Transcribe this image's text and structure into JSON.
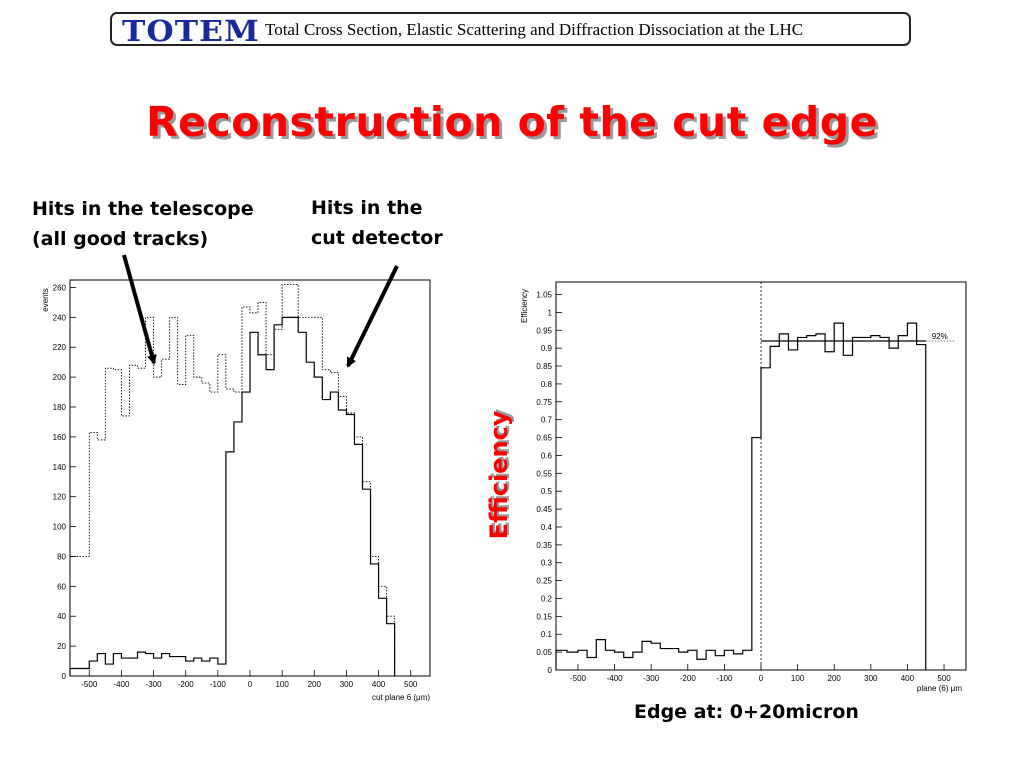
{
  "header": {
    "logo": "TOTEM",
    "subtitle": "Total Cross Section, Elastic Scattering and Diffraction Dissociation at the LHC"
  },
  "title": "Reconstruction of the cut edge",
  "annotations": {
    "telescope_line1": "Hits in the telescope",
    "telescope_line2": "(all good tracks)",
    "cut_line1": "Hits in the",
    "cut_line2": "cut detector"
  },
  "efficiency_label": "Efficiency",
  "edge_text": "Edge at: 0+20micron",
  "colors": {
    "title": "#ff0000",
    "logo": "#1a2a9a",
    "plot_line": "#000000"
  },
  "chart_data": [
    {
      "type": "line",
      "subtype": "histogram",
      "ylabel": "events",
      "xlabel": "cut plane 6 (μm)",
      "xlim": [
        -560,
        560
      ],
      "ylim": [
        0,
        265
      ],
      "xticks": [
        "-500",
        "-400",
        "-300",
        "-200",
        "-100",
        "0",
        "100",
        "200",
        "300",
        "400",
        "500"
      ],
      "yticks": [
        "0",
        "20",
        "40",
        "60",
        "80",
        "100",
        "120",
        "140",
        "160",
        "180",
        "200",
        "220",
        "240",
        "260"
      ],
      "bin_edges": [
        -560,
        -500,
        -475,
        -450,
        -425,
        -400,
        -375,
        -350,
        -325,
        -300,
        -275,
        -250,
        -225,
        -200,
        -175,
        -150,
        -125,
        -100,
        -75,
        -50,
        -25,
        0,
        25,
        50,
        75,
        100,
        125,
        150,
        175,
        200,
        225,
        250,
        275,
        300,
        325,
        350,
        375,
        400,
        425,
        450
      ],
      "series": [
        {
          "style": "dotted",
          "values": [
            80,
            163,
            158,
            206,
            205,
            174,
            208,
            206,
            240,
            200,
            212,
            240,
            195,
            228,
            200,
            196,
            190,
            215,
            192,
            190,
            247,
            243,
            250,
            215,
            232,
            262,
            262,
            240,
            240,
            240,
            205,
            203,
            187,
            176,
            160,
            130,
            80,
            60,
            40
          ]
        },
        {
          "style": "solid",
          "values": [
            5,
            10,
            15,
            8,
            15,
            12,
            12,
            16,
            15,
            12,
            15,
            13,
            13,
            10,
            12,
            10,
            12,
            8,
            150,
            170,
            190,
            230,
            215,
            205,
            235,
            240,
            240,
            230,
            210,
            200,
            185,
            190,
            178,
            175,
            155,
            125,
            75,
            52,
            35
          ]
        }
      ]
    },
    {
      "type": "line",
      "subtype": "histogram",
      "ylabel": "Efficiency",
      "xlabel": "plane (6) μm",
      "xlim": [
        -560,
        560
      ],
      "ylim": [
        0,
        1.085
      ],
      "xticks": [
        "-500",
        "-400",
        "-300",
        "-200",
        "-100",
        "0",
        "100",
        "200",
        "300",
        "400",
        "500"
      ],
      "yticks": [
        "0",
        "0.05",
        "0.1",
        "0.15",
        "0.2",
        "0.25",
        "0.3",
        "0.35",
        "0.4",
        "0.45",
        "0.5",
        "0.55",
        "0.6",
        "0.65",
        "0.7",
        "0.75",
        "0.8",
        "0.85",
        "0.9",
        "0.95",
        "1",
        "1.05"
      ],
      "bin_edges": [
        -560,
        -530,
        -500,
        -475,
        -450,
        -425,
        -400,
        -375,
        -350,
        -325,
        -300,
        -275,
        -250,
        -225,
        -200,
        -175,
        -150,
        -125,
        -100,
        -75,
        -50,
        -25,
        0,
        25,
        50,
        75,
        100,
        125,
        150,
        175,
        200,
        225,
        250,
        275,
        300,
        325,
        350,
        375,
        400,
        425,
        450
      ],
      "values": [
        0.055,
        0.05,
        0.055,
        0.035,
        0.085,
        0.055,
        0.05,
        0.035,
        0.05,
        0.08,
        0.075,
        0.06,
        0.06,
        0.05,
        0.055,
        0.03,
        0.055,
        0.04,
        0.055,
        0.045,
        0.055,
        0.65,
        0.845,
        0.905,
        0.94,
        0.895,
        0.93,
        0.935,
        0.94,
        0.89,
        0.97,
        0.88,
        0.93,
        0.93,
        0.935,
        0.93,
        0.9,
        0.935,
        0.97,
        0.91
      ],
      "fit": {
        "value": 0.92,
        "from": 0,
        "to": 450,
        "label": "92%"
      },
      "edge_marker_x": 0
    }
  ]
}
